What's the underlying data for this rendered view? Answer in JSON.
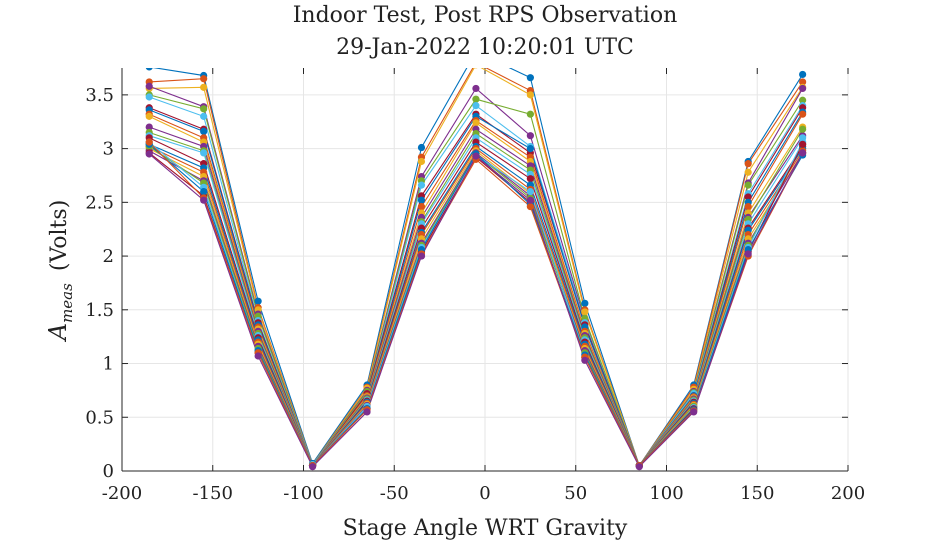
{
  "chart_data": {
    "type": "line",
    "title": [
      "Indoor Test, Post RPS Observation",
      "29-Jan-2022 10:20:01 UTC"
    ],
    "xlabel": "Stage Angle WRT Gravity",
    "ylabel_main": "A",
    "ylabel_sub": "meas",
    "ylabel_units": "(Volts)",
    "xlim": [
      -200,
      200
    ],
    "ylim": [
      0,
      3.75
    ],
    "xticks": [
      -200,
      -150,
      -100,
      -50,
      0,
      50,
      100,
      150,
      200
    ],
    "xtick_labels": [
      "-200",
      "-150",
      "-100",
      "-50",
      "0",
      "50",
      "100",
      "150",
      "200"
    ],
    "yticks": [
      0,
      0.5,
      1,
      1.5,
      2,
      2.5,
      3,
      3.5
    ],
    "ytick_labels": [
      "0",
      "0.5",
      "1",
      "1.5",
      "2",
      "2.5",
      "3",
      "3.5"
    ],
    "grid": true,
    "x": [
      -185,
      -155,
      -125,
      -95,
      -65,
      -35,
      -5,
      25,
      55,
      85,
      115,
      145,
      175
    ],
    "series": [
      {
        "color": "#0072BD",
        "values": [
          3.76,
          3.68,
          1.58,
          0.07,
          0.8,
          3.01,
          3.9,
          3.66,
          1.56,
          0.05,
          0.8,
          2.88,
          3.69
        ]
      },
      {
        "color": "#D95319",
        "values": [
          3.62,
          3.65,
          1.52,
          0.06,
          0.78,
          2.92,
          3.8,
          3.54,
          1.5,
          0.05,
          0.78,
          2.86,
          3.62
        ]
      },
      {
        "color": "#EDB120",
        "values": [
          3.56,
          3.57,
          1.5,
          0.06,
          0.77,
          2.88,
          3.78,
          3.5,
          1.48,
          0.05,
          0.76,
          2.78,
          3.57
        ]
      },
      {
        "color": "#7E2F8E",
        "values": [
          3.58,
          3.39,
          1.46,
          0.06,
          0.75,
          2.74,
          3.56,
          3.12,
          1.4,
          0.05,
          0.74,
          2.68,
          3.56
        ]
      },
      {
        "color": "#77AC30",
        "values": [
          3.5,
          3.37,
          1.44,
          0.06,
          0.74,
          2.7,
          3.46,
          3.32,
          1.42,
          0.05,
          0.73,
          2.66,
          3.45
        ]
      },
      {
        "color": "#4DBEEE",
        "values": [
          3.48,
          3.3,
          1.4,
          0.06,
          0.72,
          2.66,
          3.4,
          3.02,
          1.38,
          0.05,
          0.72,
          2.58,
          3.4
        ]
      },
      {
        "color": "#A2142F",
        "values": [
          3.38,
          3.18,
          1.38,
          0.05,
          0.72,
          2.56,
          3.32,
          2.96,
          1.36,
          0.05,
          0.7,
          2.55,
          3.38
        ]
      },
      {
        "color": "#0072BD",
        "values": [
          3.36,
          3.16,
          1.36,
          0.05,
          0.7,
          2.52,
          3.3,
          3.0,
          1.34,
          0.05,
          0.7,
          2.5,
          3.34
        ]
      },
      {
        "color": "#D95319",
        "values": [
          3.32,
          3.1,
          1.34,
          0.05,
          0.7,
          2.46,
          3.26,
          2.92,
          1.3,
          0.05,
          0.69,
          2.46,
          3.32
        ]
      },
      {
        "color": "#EDB120",
        "values": [
          3.3,
          3.06,
          1.32,
          0.05,
          0.69,
          2.4,
          3.24,
          2.88,
          1.28,
          0.05,
          0.68,
          2.4,
          3.2
        ]
      },
      {
        "color": "#7E2F8E",
        "values": [
          3.2,
          3.02,
          1.3,
          0.05,
          0.68,
          2.36,
          3.18,
          2.84,
          1.26,
          0.05,
          0.67,
          2.36,
          3.12
        ]
      },
      {
        "color": "#77AC30",
        "values": [
          3.15,
          2.98,
          1.28,
          0.05,
          0.67,
          2.32,
          3.14,
          2.8,
          1.24,
          0.05,
          0.66,
          2.34,
          3.18
        ]
      },
      {
        "color": "#4DBEEE",
        "values": [
          3.12,
          2.96,
          1.26,
          0.05,
          0.66,
          2.3,
          3.1,
          2.76,
          1.22,
          0.05,
          0.65,
          2.3,
          3.1
        ]
      },
      {
        "color": "#A2142F",
        "values": [
          3.1,
          2.86,
          1.24,
          0.05,
          0.65,
          2.26,
          3.06,
          2.72,
          1.2,
          0.05,
          0.64,
          2.26,
          3.02
        ]
      },
      {
        "color": "#0072BD",
        "values": [
          3.04,
          2.82,
          1.22,
          0.05,
          0.64,
          2.22,
          3.02,
          2.66,
          1.18,
          0.05,
          0.63,
          2.24,
          3.0
        ]
      },
      {
        "color": "#D95319",
        "values": [
          3.02,
          2.78,
          1.2,
          0.05,
          0.63,
          2.2,
          3.0,
          2.62,
          1.16,
          0.05,
          0.62,
          2.2,
          2.98
        ]
      },
      {
        "color": "#EDB120",
        "values": [
          3.0,
          2.74,
          1.18,
          0.05,
          0.62,
          2.16,
          2.98,
          2.58,
          1.14,
          0.05,
          0.61,
          2.16,
          2.96
        ]
      },
      {
        "color": "#7E2F8E",
        "values": [
          2.98,
          2.7,
          1.16,
          0.05,
          0.61,
          2.12,
          2.96,
          2.56,
          1.12,
          0.05,
          0.6,
          2.12,
          2.96
        ]
      },
      {
        "color": "#77AC30",
        "values": [
          3.02,
          2.68,
          1.14,
          0.05,
          0.6,
          2.1,
          2.95,
          2.54,
          1.1,
          0.05,
          0.6,
          2.1,
          3.04
        ]
      },
      {
        "color": "#4DBEEE",
        "values": [
          3.06,
          2.64,
          1.12,
          0.05,
          0.6,
          2.08,
          2.94,
          2.6,
          1.08,
          0.05,
          0.59,
          2.08,
          3.06
        ]
      },
      {
        "color": "#A2142F",
        "values": [
          2.96,
          2.56,
          1.1,
          0.05,
          0.58,
          2.04,
          2.92,
          2.5,
          1.06,
          0.05,
          0.58,
          2.04,
          3.04
        ]
      },
      {
        "color": "#0072BD",
        "values": [
          3.04,
          2.6,
          1.12,
          0.05,
          0.58,
          2.06,
          2.95,
          2.48,
          1.08,
          0.05,
          0.57,
          2.06,
          2.94
        ]
      },
      {
        "color": "#D95319",
        "values": [
          3.06,
          2.54,
          1.1,
          0.05,
          0.57,
          2.02,
          2.9,
          2.46,
          1.06,
          0.05,
          0.56,
          2.0,
          2.96
        ]
      },
      {
        "color": "#7E2F8E",
        "values": [
          2.95,
          2.52,
          1.07,
          0.04,
          0.55,
          2.0,
          2.93,
          2.52,
          1.03,
          0.04,
          0.55,
          2.02,
          2.96
        ]
      }
    ]
  }
}
